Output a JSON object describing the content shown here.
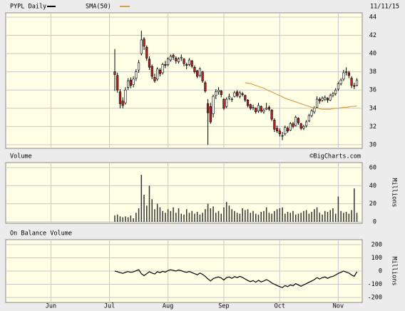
{
  "chart_data": [
    {
      "type": "candlestick",
      "date_label": "11/11/15",
      "x": [
        2,
        3,
        4,
        5,
        6,
        7,
        8,
        9,
        10,
        11,
        12,
        13,
        14,
        15,
        16,
        17,
        18,
        19,
        20,
        21,
        22,
        23,
        24,
        25,
        26,
        27,
        28,
        29,
        30,
        31,
        32,
        33,
        34,
        35,
        36,
        37,
        38,
        39,
        40,
        41,
        42,
        43,
        44,
        45,
        46,
        47,
        48,
        49,
        50,
        51,
        52,
        53,
        54,
        55,
        56,
        57,
        58,
        59,
        60,
        61,
        62,
        63,
        64,
        65,
        66,
        67,
        68,
        69,
        70,
        71,
        72,
        73,
        74,
        75,
        76,
        77,
        78,
        79,
        80,
        81,
        82,
        83,
        84,
        85,
        86,
        87,
        88,
        89,
        90,
        91,
        92,
        93
      ],
      "ylim": [
        29.6,
        44.47
      ],
      "yticks": [
        30,
        32,
        34,
        36,
        38,
        40,
        42,
        44
      ],
      "grid": true,
      "series": [
        {
          "name": "PYPL Daily",
          "color": "#000000",
          "down_color": "#c02020",
          "up_color": "#ffffff",
          "ohlc": [
            [
              38.0,
              40.5,
              35.9,
              37.7
            ],
            [
              37.6,
              37.9,
              35.7,
              36.0
            ],
            [
              35.8,
              36.1,
              34.0,
              34.5
            ],
            [
              34.8,
              35.2,
              34.0,
              34.3
            ],
            [
              34.6,
              36.3,
              34.4,
              36.0
            ],
            [
              36.3,
              37.3,
              36.0,
              37.0
            ],
            [
              37.1,
              37.4,
              36.2,
              36.5
            ],
            [
              36.6,
              37.5,
              36.3,
              37.2
            ],
            [
              37.3,
              38.3,
              37.0,
              38.0
            ],
            [
              38.2,
              39.3,
              37.9,
              39.0
            ],
            [
              40.0,
              42.5,
              39.8,
              41.5
            ],
            [
              41.6,
              41.8,
              40.4,
              40.8
            ],
            [
              40.7,
              40.9,
              39.2,
              39.5
            ],
            [
              39.4,
              39.7,
              38.2,
              38.5
            ],
            [
              38.6,
              38.8,
              37.2,
              37.5
            ],
            [
              37.4,
              37.8,
              36.8,
              37.0
            ],
            [
              37.2,
              38.5,
              37.0,
              38.3
            ],
            [
              38.2,
              38.4,
              37.5,
              37.8
            ],
            [
              37.9,
              39.0,
              37.7,
              38.8
            ],
            [
              38.8,
              39.2,
              38.4,
              38.7
            ],
            [
              38.8,
              39.6,
              38.6,
              39.4
            ],
            [
              39.3,
              39.9,
              39.1,
              39.7
            ],
            [
              39.8,
              40.0,
              39.3,
              39.6
            ],
            [
              39.5,
              39.7,
              38.9,
              39.2
            ],
            [
              39.1,
              39.6,
              38.9,
              39.4
            ],
            [
              39.5,
              39.9,
              39.2,
              39.6
            ],
            [
              39.4,
              39.5,
              38.6,
              38.9
            ],
            [
              38.8,
              39.0,
              38.3,
              38.7
            ],
            [
              38.8,
              39.5,
              38.6,
              39.3
            ],
            [
              39.2,
              39.3,
              38.4,
              38.6
            ],
            [
              38.5,
              38.7,
              37.8,
              38.0
            ],
            [
              38.1,
              38.2,
              37.3,
              37.5
            ],
            [
              37.6,
              38.5,
              37.4,
              38.3
            ],
            [
              38.0,
              38.1,
              36.8,
              37.0
            ],
            [
              36.8,
              37.0,
              35.7,
              35.9
            ],
            [
              34.5,
              35.0,
              30.0,
              33.5
            ],
            [
              34.2,
              34.6,
              32.3,
              32.5
            ],
            [
              33.4,
              35.5,
              33.0,
              35.3
            ],
            [
              35.4,
              36.1,
              35.0,
              35.8
            ],
            [
              35.8,
              36.3,
              35.5,
              36.0
            ],
            [
              35.9,
              36.0,
              35.2,
              35.5
            ],
            [
              35.0,
              35.1,
              33.8,
              34.0
            ],
            [
              34.2,
              35.2,
              34.0,
              35.0
            ],
            [
              35.1,
              35.6,
              34.9,
              35.3
            ],
            [
              35.0,
              35.2,
              34.7,
              35.0
            ],
            [
              35.3,
              35.9,
              35.2,
              35.7
            ],
            [
              35.8,
              36.0,
              35.2,
              35.4
            ],
            [
              35.3,
              35.9,
              35.1,
              35.7
            ],
            [
              35.6,
              35.8,
              35.3,
              35.5
            ],
            [
              35.4,
              35.5,
              34.7,
              34.9
            ],
            [
              34.9,
              35.0,
              34.1,
              34.3
            ],
            [
              34.4,
              34.5,
              33.8,
              34.0
            ],
            [
              34.0,
              34.4,
              33.8,
              34.1
            ],
            [
              34.0,
              34.1,
              33.4,
              33.6
            ],
            [
              33.7,
              34.6,
              33.5,
              34.3
            ],
            [
              34.2,
              34.3,
              33.5,
              33.7
            ],
            [
              33.6,
              34.0,
              33.4,
              33.8
            ],
            [
              33.9,
              34.6,
              33.8,
              34.0
            ],
            [
              34.1,
              34.3,
              33.7,
              33.9
            ],
            [
              33.8,
              33.9,
              32.6,
              32.8
            ],
            [
              32.7,
              32.9,
              31.4,
              31.7
            ],
            [
              31.8,
              32.1,
              31.3,
              31.5
            ],
            [
              31.5,
              31.8,
              30.9,
              31.2
            ],
            [
              31.0,
              31.4,
              30.5,
              31.0
            ],
            [
              31.2,
              32.1,
              31.0,
              31.9
            ],
            [
              31.8,
              32.0,
              31.3,
              31.5
            ],
            [
              31.6,
              32.5,
              31.5,
              32.3
            ],
            [
              32.3,
              32.5,
              31.8,
              32.0
            ],
            [
              32.1,
              33.2,
              32.0,
              33.0
            ],
            [
              32.9,
              33.0,
              32.2,
              32.4
            ],
            [
              32.3,
              32.4,
              31.6,
              31.8
            ],
            [
              31.8,
              32.2,
              31.6,
              32.0
            ],
            [
              32.1,
              32.7,
              31.9,
              32.5
            ],
            [
              32.6,
              33.4,
              32.5,
              33.2
            ],
            [
              33.2,
              33.9,
              33.0,
              33.7
            ],
            [
              33.6,
              34.2,
              33.4,
              34.0
            ],
            [
              34.1,
              35.3,
              34.0,
              35.0
            ],
            [
              35.0,
              35.2,
              34.5,
              34.8
            ],
            [
              34.9,
              35.3,
              34.7,
              35.1
            ],
            [
              35.0,
              35.4,
              34.8,
              35.2
            ],
            [
              35.1,
              35.2,
              34.6,
              34.9
            ],
            [
              34.9,
              35.6,
              34.8,
              35.4
            ],
            [
              35.4,
              35.8,
              35.2,
              35.6
            ],
            [
              35.6,
              36.2,
              35.4,
              36.0
            ],
            [
              36.1,
              36.9,
              35.9,
              36.7
            ],
            [
              36.7,
              37.3,
              36.5,
              37.1
            ],
            [
              37.2,
              38.2,
              37.0,
              37.9
            ],
            [
              38.0,
              38.5,
              37.6,
              38.0
            ],
            [
              37.9,
              38.1,
              37.3,
              37.6
            ],
            [
              37.3,
              37.5,
              36.2,
              36.5
            ],
            [
              36.5,
              36.8,
              36.1,
              36.4
            ],
            [
              36.5,
              37.3,
              36.4,
              37.1
            ]
          ]
        },
        {
          "name": "SMA(50)",
          "color": "#d9a24a",
          "values": [
            null,
            null,
            null,
            null,
            null,
            null,
            null,
            null,
            null,
            null,
            null,
            null,
            null,
            null,
            null,
            null,
            null,
            null,
            null,
            null,
            null,
            null,
            null,
            null,
            null,
            null,
            null,
            null,
            null,
            null,
            null,
            null,
            null,
            null,
            null,
            null,
            null,
            null,
            null,
            null,
            null,
            null,
            null,
            null,
            null,
            null,
            null,
            null,
            null,
            36.8,
            36.75,
            36.7,
            36.6,
            36.5,
            36.4,
            36.3,
            36.2,
            36.05,
            35.9,
            35.8,
            35.65,
            35.5,
            35.4,
            35.25,
            35.1,
            35.0,
            34.9,
            34.8,
            34.7,
            34.6,
            34.5,
            34.4,
            34.3,
            34.2,
            34.1,
            34.05,
            34.0,
            33.95,
            33.9,
            33.9,
            33.9,
            33.9,
            33.95,
            34.0,
            34.0,
            34.05,
            34.1,
            34.1,
            34.15,
            34.2,
            34.2,
            34.25
          ]
        }
      ]
    },
    {
      "type": "bar",
      "title": "Volume",
      "source": "©BigCharts.com",
      "y_label": "Millions",
      "ylim": [
        -1.6,
        65.5
      ],
      "yticks": [
        0,
        20,
        40,
        60
      ],
      "grid": true,
      "color": "#333333",
      "values": [
        7,
        8,
        6,
        5,
        6,
        5,
        7,
        4,
        10,
        15,
        52,
        30,
        18,
        40,
        25,
        14,
        20,
        16,
        12,
        10,
        14,
        12,
        16,
        10,
        15,
        9,
        8,
        14,
        10,
        12,
        9,
        11,
        8,
        10,
        14,
        20,
        15,
        17,
        10,
        12,
        9,
        16,
        22,
        18,
        14,
        12,
        10,
        9,
        15,
        13,
        14,
        10,
        12,
        9,
        8,
        11,
        12,
        16,
        10,
        9,
        12,
        14,
        15,
        16,
        9,
        11,
        10,
        12,
        8,
        9,
        10,
        12,
        13,
        9,
        11,
        14,
        16,
        10,
        8,
        12,
        11,
        13,
        15,
        9,
        28,
        12,
        10,
        11,
        9,
        13,
        37,
        10
      ]
    },
    {
      "type": "line",
      "title": "On Balance Volume",
      "y_label": "Millions",
      "ylim": [
        -238,
        238
      ],
      "yticks": [
        200,
        100,
        0,
        -100,
        -200
      ],
      "grid": true,
      "color": "#000000",
      "xlim": [
        -39,
        95
      ],
      "xticks": [
        {
          "value": -22,
          "label": "Jun"
        },
        {
          "value": 0,
          "label": "Jul"
        },
        {
          "value": 22,
          "label": "Aug"
        },
        {
          "value": 43,
          "label": "Sep"
        },
        {
          "value": 64,
          "label": "Oct"
        },
        {
          "value": 86,
          "label": "Nov"
        }
      ],
      "values": [
        0,
        -5,
        -12,
        -18,
        -10,
        -4,
        -10,
        -6,
        2,
        10,
        -20,
        -35,
        -20,
        -5,
        -15,
        -22,
        -5,
        -12,
        -2,
        -8,
        4,
        10,
        5,
        0,
        8,
        2,
        -5,
        -10,
        -3,
        -12,
        -20,
        -28,
        -15,
        -25,
        -40,
        -60,
        -75,
        -58,
        -50,
        -45,
        -52,
        -68,
        -50,
        -45,
        -55,
        -42,
        -50,
        -40,
        -48,
        -60,
        -72,
        -80,
        -72,
        -85,
        -70,
        -82,
        -75,
        -65,
        -75,
        -90,
        -100,
        -110,
        -118,
        -125,
        -110,
        -118,
        -105,
        -112,
        -95,
        -105,
        -115,
        -105,
        -95,
        -85,
        -75,
        -65,
        -50,
        -60,
        -50,
        -45,
        -55,
        -45,
        -40,
        -30,
        -18,
        -10,
        0,
        -8,
        -15,
        -30,
        -40,
        -5
      ]
    }
  ]
}
